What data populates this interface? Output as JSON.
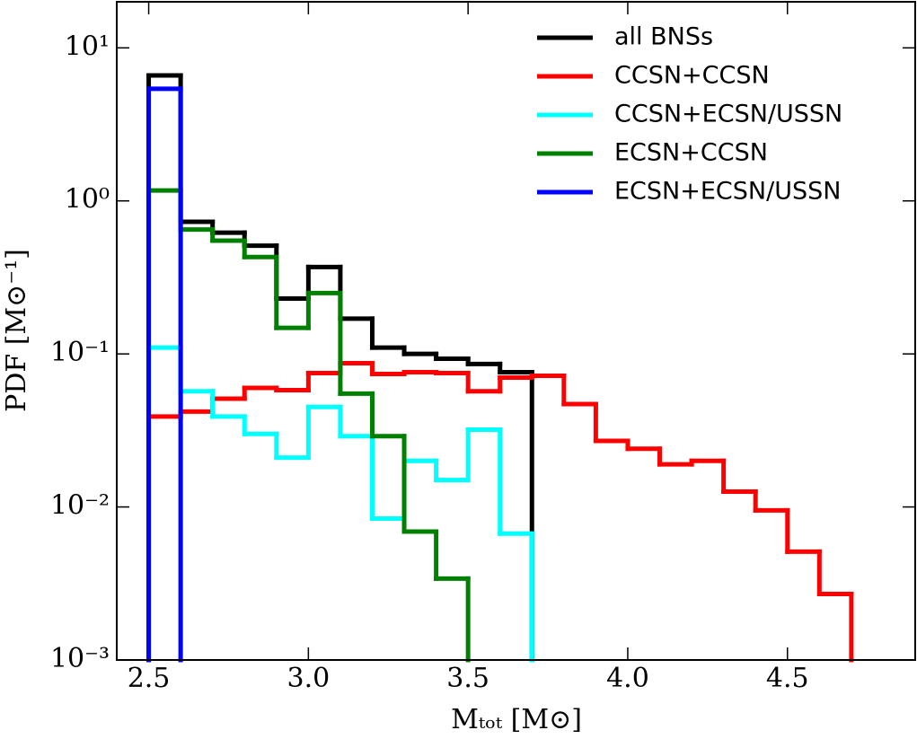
{
  "chart_data": {
    "type": "histogram-step",
    "xlabel": "Mₜₒₜ [M⊙]",
    "ylabel": "PDF [M⊙⁻¹]",
    "bins": [
      2.5,
      2.6,
      2.7,
      2.8,
      2.9,
      3.0,
      3.1,
      3.2,
      3.3,
      3.4,
      3.5,
      3.6,
      3.7,
      3.8,
      3.9,
      4.0,
      4.1,
      4.2,
      4.3,
      4.4,
      4.5,
      4.6,
      4.7
    ],
    "series": [
      {
        "name": "all BNSs",
        "color": "#000000",
        "values": [
          6.6,
          0.73,
          0.62,
          0.51,
          0.23,
          0.37,
          0.17,
          0.11,
          0.1,
          0.093,
          0.086,
          0.076,
          null,
          null,
          null,
          null,
          null,
          null,
          null,
          null,
          null,
          null
        ]
      },
      {
        "name": "CCSN+CCSN",
        "color": "#ff0000",
        "values": [
          0.039,
          0.042,
          0.051,
          0.06,
          0.058,
          0.075,
          0.087,
          0.074,
          0.076,
          0.075,
          0.057,
          0.07,
          0.072,
          0.047,
          0.027,
          0.024,
          0.019,
          0.02,
          0.0126,
          0.0095,
          0.0051,
          0.0027
        ]
      },
      {
        "name": "CCSN+ECSN/USSN",
        "color": "#00ffff",
        "values": [
          0.11,
          0.057,
          0.039,
          0.03,
          0.021,
          0.045,
          0.029,
          0.0084,
          0.02,
          0.015,
          0.032,
          0.0067,
          null,
          null,
          null,
          null,
          null,
          null,
          null,
          null,
          null,
          null
        ]
      },
      {
        "name": "ECSN+CCSN",
        "color": "#008000",
        "values": [
          1.17,
          0.65,
          0.55,
          0.43,
          0.148,
          0.25,
          0.055,
          0.029,
          0.0069,
          0.0034,
          null,
          null,
          null,
          null,
          null,
          null,
          null,
          null,
          null,
          null,
          null,
          null
        ]
      },
      {
        "name": "ECSN+ECSN/USSN",
        "color": "#0000ff",
        "values": [
          5.4,
          null,
          null,
          null,
          null,
          null,
          null,
          null,
          null,
          null,
          null,
          null,
          null,
          null,
          null,
          null,
          null,
          null,
          null,
          null,
          null,
          null
        ]
      }
    ],
    "xlim": [
      2.4,
      4.9
    ],
    "xticks": [
      {
        "value": 2.5,
        "label": "2.5"
      },
      {
        "value": 3.0,
        "label": "3.0"
      },
      {
        "value": 3.5,
        "label": "3.5"
      },
      {
        "value": 4.0,
        "label": "4.0"
      },
      {
        "value": 4.5,
        "label": "4.5"
      }
    ],
    "ylim": [
      0.001,
      20
    ],
    "yscale": "log",
    "yticks": [
      {
        "value": 0.001,
        "label": "10⁻³"
      },
      {
        "value": 0.01,
        "label": "10⁻²"
      },
      {
        "value": 0.1,
        "label": "10⁻¹"
      },
      {
        "value": 1,
        "label": "10⁰"
      },
      {
        "value": 10,
        "label": "10¹"
      }
    ],
    "legend": "upper right"
  }
}
